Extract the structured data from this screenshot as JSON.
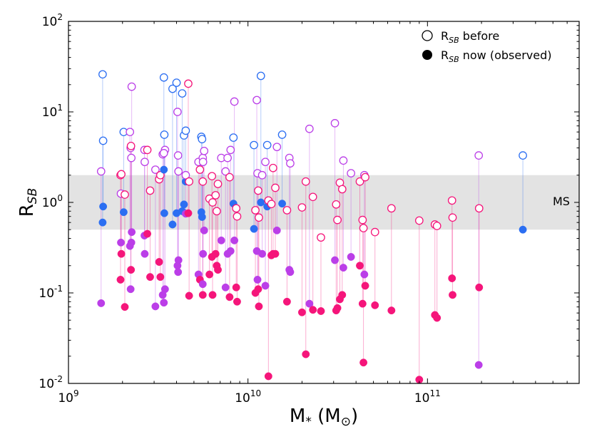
{
  "chart_data": {
    "type": "scatter",
    "xscale": "log",
    "yscale": "log",
    "xlim": [
      1000000000,
      700000000000
    ],
    "ylim": [
      0.01,
      100
    ],
    "xlabel": "M",
    "xlabel_sub": "*",
    "xlabel_unit": " (M",
    "xlabel_unit_symbol": "⊙",
    "xlabel_close": ")",
    "ylabel": "R",
    "ylabel_sub": "SB",
    "x_ticks": [
      {
        "base": "10",
        "exp": "9",
        "value": 1000000000
      },
      {
        "base": "10",
        "exp": "10",
        "value": 10000000000
      },
      {
        "base": "10",
        "exp": "11",
        "value": 100000000000
      }
    ],
    "y_ticks": [
      {
        "base": "10",
        "exp": "-2",
        "value": 0.01
      },
      {
        "base": "10",
        "exp": "-1",
        "value": 0.1
      },
      {
        "base": "10",
        "exp": "0",
        "value": 1
      },
      {
        "base": "10",
        "exp": "1",
        "value": 10
      },
      {
        "base": "10",
        "exp": "2",
        "value": 100
      }
    ],
    "band": {
      "label": "MS",
      "y_low": 0.5,
      "y_high": 2.0,
      "color": "#e3e3e3"
    },
    "legend": [
      {
        "prefix": "R",
        "sub": "SB",
        "text": " before",
        "style": "open"
      },
      {
        "prefix": "R",
        "sub": "SB",
        "text": " now (observed)",
        "style": "filled"
      }
    ],
    "colors": {
      "blue": "#2b6ef2",
      "purple": "#bb3ee8",
      "pink": "#f5157a"
    },
    "points": [
      {
        "x": 1550000000.0,
        "before": 26,
        "now": 0.6,
        "c": "blue"
      },
      {
        "x": 1560000000.0,
        "before": 4.8,
        "now": 0.9,
        "c": "blue"
      },
      {
        "x": 1520000000.0,
        "before": 2.2,
        "now": 0.077,
        "c": "purple"
      },
      {
        "x": 1950000000.0,
        "before": 2.0,
        "now": 0.14,
        "c": "pink"
      },
      {
        "x": 1960000000.0,
        "before": 1.25,
        "now": 0.36,
        "c": "purple"
      },
      {
        "x": 1970000000.0,
        "before": 2.05,
        "now": 0.27,
        "c": "pink"
      },
      {
        "x": 2030000000.0,
        "before": 6.0,
        "now": 0.78,
        "c": "blue"
      },
      {
        "x": 2060000000.0,
        "before": 1.22,
        "now": 0.07,
        "c": "pink"
      },
      {
        "x": 2200000000.0,
        "before": 6.0,
        "now": 0.33,
        "c": "purple"
      },
      {
        "x": 2220000000.0,
        "before": 4.0,
        "now": 0.11,
        "c": "purple"
      },
      {
        "x": 2240000000.0,
        "before": 3.1,
        "now": 0.36,
        "c": "purple"
      },
      {
        "x": 2250000000.0,
        "before": 19,
        "now": 0.47,
        "c": "purple"
      },
      {
        "x": 2230000000.0,
        "before": 4.2,
        "now": 0.18,
        "c": "pink"
      },
      {
        "x": 2650000000.0,
        "before": 3.8,
        "now": 0.43,
        "c": "purple"
      },
      {
        "x": 2660000000.0,
        "before": 2.8,
        "now": 0.27,
        "c": "purple"
      },
      {
        "x": 2750000000.0,
        "before": 3.8,
        "now": 0.45,
        "c": "pink"
      },
      {
        "x": 2850000000.0,
        "before": 1.35,
        "now": 0.15,
        "c": "pink"
      },
      {
        "x": 3050000000.0,
        "before": 2.3,
        "now": 0.071,
        "c": "purple"
      },
      {
        "x": 3200000000.0,
        "before": 1.8,
        "now": 0.22,
        "c": "pink"
      },
      {
        "x": 3250000000.0,
        "before": 2.0,
        "now": 0.15,
        "c": "pink"
      },
      {
        "x": 3350000000.0,
        "before": 3.4,
        "now": 0.095,
        "c": "purple"
      },
      {
        "x": 3400000000.0,
        "before": 24,
        "now": 2.3,
        "c": "blue"
      },
      {
        "x": 3420000000.0,
        "before": 5.6,
        "now": 0.76,
        "c": "blue"
      },
      {
        "x": 3450000000.0,
        "before": 3.8,
        "now": 0.11,
        "c": "purple"
      },
      {
        "x": 3400000000.0,
        "before": 3.5,
        "now": 0.078,
        "c": "purple"
      },
      {
        "x": 3800000000.0,
        "before": 18,
        "now": 0.57,
        "c": "blue"
      },
      {
        "x": 4000000000.0,
        "before": 21,
        "now": 0.76,
        "c": "blue"
      },
      {
        "x": 4050000000.0,
        "before": 10,
        "now": 0.2,
        "c": "purple"
      },
      {
        "x": 4080000000.0,
        "before": 3.3,
        "now": 0.17,
        "c": "purple"
      },
      {
        "x": 4100000000.0,
        "before": 2.2,
        "now": 0.23,
        "c": "purple"
      },
      {
        "x": 4300000000.0,
        "before": 16,
        "now": 0.8,
        "c": "blue"
      },
      {
        "x": 4400000000.0,
        "before": 5.5,
        "now": 0.95,
        "c": "blue"
      },
      {
        "x": 4500000000.0,
        "before": 6.2,
        "now": 1.7,
        "c": "blue"
      },
      {
        "x": 4500000000.0,
        "before": 2.0,
        "now": 0.75,
        "c": "purple"
      },
      {
        "x": 4650000000.0,
        "before": 20.5,
        "now": 0.76,
        "c": "pink"
      },
      {
        "x": 4700000000.0,
        "before": 1.7,
        "now": 0.093,
        "c": "pink"
      },
      {
        "x": 5300000000.0,
        "before": 2.8,
        "now": 0.16,
        "c": "purple"
      },
      {
        "x": 5400000000.0,
        "before": 2.3,
        "now": 0.14,
        "c": "pink"
      },
      {
        "x": 5500000000.0,
        "before": 5.3,
        "now": 0.78,
        "c": "blue"
      },
      {
        "x": 5550000000.0,
        "before": 5.0,
        "now": 0.69,
        "c": "blue"
      },
      {
        "x": 5600000000.0,
        "before": 3.1,
        "now": 0.125,
        "c": "purple"
      },
      {
        "x": 5600000000.0,
        "before": 1.7,
        "now": 0.095,
        "c": "pink"
      },
      {
        "x": 5620000000.0,
        "before": 2.8,
        "now": 0.27,
        "c": "purple"
      },
      {
        "x": 5700000000.0,
        "before": 3.7,
        "now": 0.49,
        "c": "purple"
      },
      {
        "x": 6100000000.0,
        "before": 1.1,
        "now": 0.16,
        "c": "pink"
      },
      {
        "x": 6300000000.0,
        "before": 1.95,
        "now": 0.25,
        "c": "pink"
      },
      {
        "x": 6350000000.0,
        "before": 1.0,
        "now": 0.095,
        "c": "pink"
      },
      {
        "x": 6600000000.0,
        "before": 1.2,
        "now": 0.27,
        "c": "pink"
      },
      {
        "x": 6800000000.0,
        "before": 1.6,
        "now": 0.18,
        "c": "pink"
      },
      {
        "x": 6700000000.0,
        "before": 0.8,
        "now": 0.2,
        "c": "pink"
      },
      {
        "x": 7100000000.0,
        "before": 3.1,
        "now": 0.38,
        "c": "purple"
      },
      {
        "x": 7500000000.0,
        "before": 2.2,
        "now": 0.115,
        "c": "purple"
      },
      {
        "x": 7700000000.0,
        "before": 3.1,
        "now": 0.27,
        "c": "purple"
      },
      {
        "x": 7900000000.0,
        "before": 1.9,
        "now": 0.09,
        "c": "pink"
      },
      {
        "x": 8000000000.0,
        "before": 3.8,
        "now": 0.29,
        "c": "purple"
      },
      {
        "x": 8400000000.0,
        "before": 13,
        "now": 0.38,
        "c": "purple"
      },
      {
        "x": 8300000000.0,
        "before": 5.2,
        "now": 0.97,
        "c": "blue"
      },
      {
        "x": 8600000000.0,
        "before": 0.86,
        "now": 0.115,
        "c": "pink"
      },
      {
        "x": 8700000000.0,
        "before": 0.7,
        "now": 0.08,
        "c": "pink"
      },
      {
        "x": 10800000000.0,
        "before": 4.3,
        "now": 0.51,
        "c": "blue"
      },
      {
        "x": 11000000000.0,
        "before": 0.82,
        "now": 0.1,
        "c": "pink"
      },
      {
        "x": 11200000000.0,
        "before": 13.5,
        "now": 0.29,
        "c": "purple"
      },
      {
        "x": 11300000000.0,
        "before": 2.1,
        "now": 0.14,
        "c": "purple"
      },
      {
        "x": 11400000000.0,
        "before": 1.35,
        "now": 0.11,
        "c": "pink"
      },
      {
        "x": 11500000000.0,
        "before": 0.68,
        "now": 0.071,
        "c": "pink"
      },
      {
        "x": 11800000000.0,
        "before": 25,
        "now": 1.0,
        "c": "blue"
      },
      {
        "x": 12000000000.0,
        "before": 2.0,
        "now": 0.27,
        "c": "purple"
      },
      {
        "x": 12500000000.0,
        "before": 2.8,
        "now": 0.12,
        "c": "purple"
      },
      {
        "x": 12800000000.0,
        "before": 4.3,
        "now": 0.9,
        "c": "blue"
      },
      {
        "x": 13000000000.0,
        "before": 1.05,
        "now": 0.012,
        "c": "pink"
      },
      {
        "x": 13500000000.0,
        "before": 0.96,
        "now": 0.26,
        "c": "pink"
      },
      {
        "x": 13800000000.0,
        "before": 2.4,
        "now": 0.27,
        "c": "pink"
      },
      {
        "x": 14200000000.0,
        "before": 1.45,
        "now": 0.27,
        "c": "pink"
      },
      {
        "x": 14500000000.0,
        "before": 4.1,
        "now": 0.49,
        "c": "purple"
      },
      {
        "x": 15500000000.0,
        "before": 5.6,
        "now": 0.97,
        "c": "blue"
      },
      {
        "x": 16500000000.0,
        "before": 0.82,
        "now": 0.08,
        "c": "pink"
      },
      {
        "x": 17000000000.0,
        "before": 3.1,
        "now": 0.18,
        "c": "purple"
      },
      {
        "x": 17200000000.0,
        "before": 2.7,
        "now": 0.17,
        "c": "purple"
      },
      {
        "x": 20000000000.0,
        "before": 0.88,
        "now": 0.061,
        "c": "pink"
      },
      {
        "x": 21000000000.0,
        "before": 1.7,
        "now": 0.021,
        "c": "pink"
      },
      {
        "x": 22000000000.0,
        "before": 6.5,
        "now": 0.076,
        "c": "purple"
      },
      {
        "x": 23000000000.0,
        "before": 1.15,
        "now": 0.065,
        "c": "pink"
      },
      {
        "x": 25500000000.0,
        "before": 0.41,
        "now": 0.063,
        "c": "pink"
      },
      {
        "x": 30500000000.0,
        "before": 7.5,
        "now": 0.23,
        "c": "purple"
      },
      {
        "x": 31000000000.0,
        "before": 0.95,
        "now": 0.064,
        "c": "pink"
      },
      {
        "x": 31500000000.0,
        "before": 0.64,
        "now": 0.068,
        "c": "pink"
      },
      {
        "x": 32500000000.0,
        "before": 1.65,
        "now": 0.085,
        "c": "pink"
      },
      {
        "x": 33500000000.0,
        "before": 1.4,
        "now": 0.095,
        "c": "pink"
      },
      {
        "x": 34000000000.0,
        "before": 2.9,
        "now": 0.19,
        "c": "purple"
      },
      {
        "x": 37500000000.0,
        "before": 2.1,
        "now": 0.25,
        "c": "purple"
      },
      {
        "x": 42000000000.0,
        "before": 1.7,
        "now": 0.2,
        "c": "pink"
      },
      {
        "x": 43500000000.0,
        "before": 0.64,
        "now": 0.076,
        "c": "pink"
      },
      {
        "x": 44000000000.0,
        "before": 0.52,
        "now": 0.017,
        "c": "pink"
      },
      {
        "x": 44500000000.0,
        "before": 2.0,
        "now": 0.16,
        "c": "purple"
      },
      {
        "x": 45000000000.0,
        "before": 1.9,
        "now": 0.12,
        "c": "pink"
      },
      {
        "x": 51000000000.0,
        "before": 0.47,
        "now": 0.073,
        "c": "pink"
      },
      {
        "x": 63000000000.0,
        "before": 0.86,
        "now": 0.064,
        "c": "pink"
      },
      {
        "x": 90000000000.0,
        "before": 0.63,
        "now": 0.011,
        "c": "pink"
      },
      {
        "x": 110000000000.0,
        "before": 0.57,
        "now": 0.057,
        "c": "pink"
      },
      {
        "x": 113000000000.0,
        "before": 0.55,
        "now": 0.053,
        "c": "pink"
      },
      {
        "x": 137000000000.0,
        "before": 1.05,
        "now": 0.145,
        "c": "pink"
      },
      {
        "x": 138000000000.0,
        "before": 0.68,
        "now": 0.095,
        "c": "pink"
      },
      {
        "x": 193000000000.0,
        "before": 3.3,
        "now": 0.016,
        "c": "purple"
      },
      {
        "x": 194000000000.0,
        "before": 0.86,
        "now": 0.115,
        "c": "pink"
      },
      {
        "x": 340000000000.0,
        "before": 3.3,
        "now": 0.5,
        "c": "blue"
      }
    ]
  }
}
